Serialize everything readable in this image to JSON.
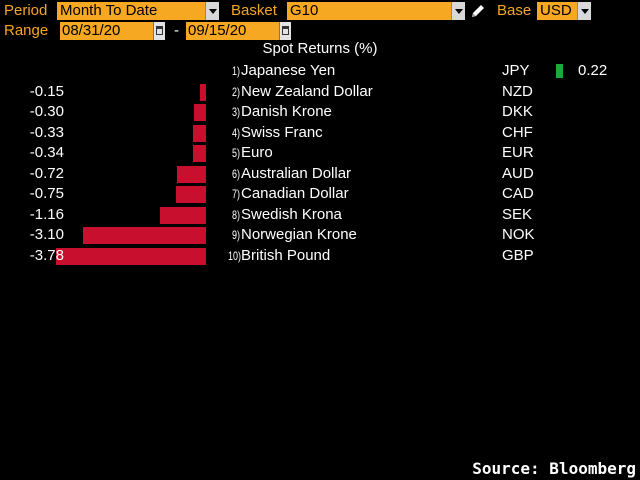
{
  "controls": {
    "period_label": "Period",
    "period_value": "Month To Date",
    "basket_label": "Basket",
    "basket_value": "G10",
    "base_label": "Base",
    "base_value": "USD",
    "range_label": "Range",
    "range_start": "08/31/20",
    "range_separator": "-",
    "range_end": "09/15/20"
  },
  "chart_title": "Spot Returns (%)",
  "source": "Source: Bloomberg",
  "colors": {
    "negative": "#c8102e",
    "positive": "#1fa83a",
    "field": "#f7a823",
    "label": "#f5a623"
  },
  "chart_data": {
    "type": "bar",
    "title": "Spot Returns (%)",
    "unit": "%",
    "categories": [
      "Japanese Yen",
      "New Zealand Dollar",
      "Danish Krone",
      "Swiss Franc",
      "Euro",
      "Australian Dollar",
      "Canadian Dollar",
      "Swedish Krona",
      "Norwegian Krone",
      "British Pound"
    ],
    "codes": [
      "JPY",
      "NZD",
      "DKK",
      "CHF",
      "EUR",
      "AUD",
      "CAD",
      "SEK",
      "NOK",
      "GBP"
    ],
    "ranks": [
      "1)",
      "2)",
      "3)",
      "4)",
      "5)",
      "6)",
      "7)",
      "8)",
      "9)",
      "10)"
    ],
    "values": [
      0.22,
      -0.15,
      -0.3,
      -0.33,
      -0.34,
      -0.72,
      -0.75,
      -1.16,
      -3.1,
      -3.78
    ],
    "labels": [
      "0.22",
      "-0.15",
      "-0.30",
      "-0.33",
      "-0.34",
      "-0.72",
      "-0.75",
      "-1.16",
      "-3.10",
      "-3.78"
    ]
  }
}
